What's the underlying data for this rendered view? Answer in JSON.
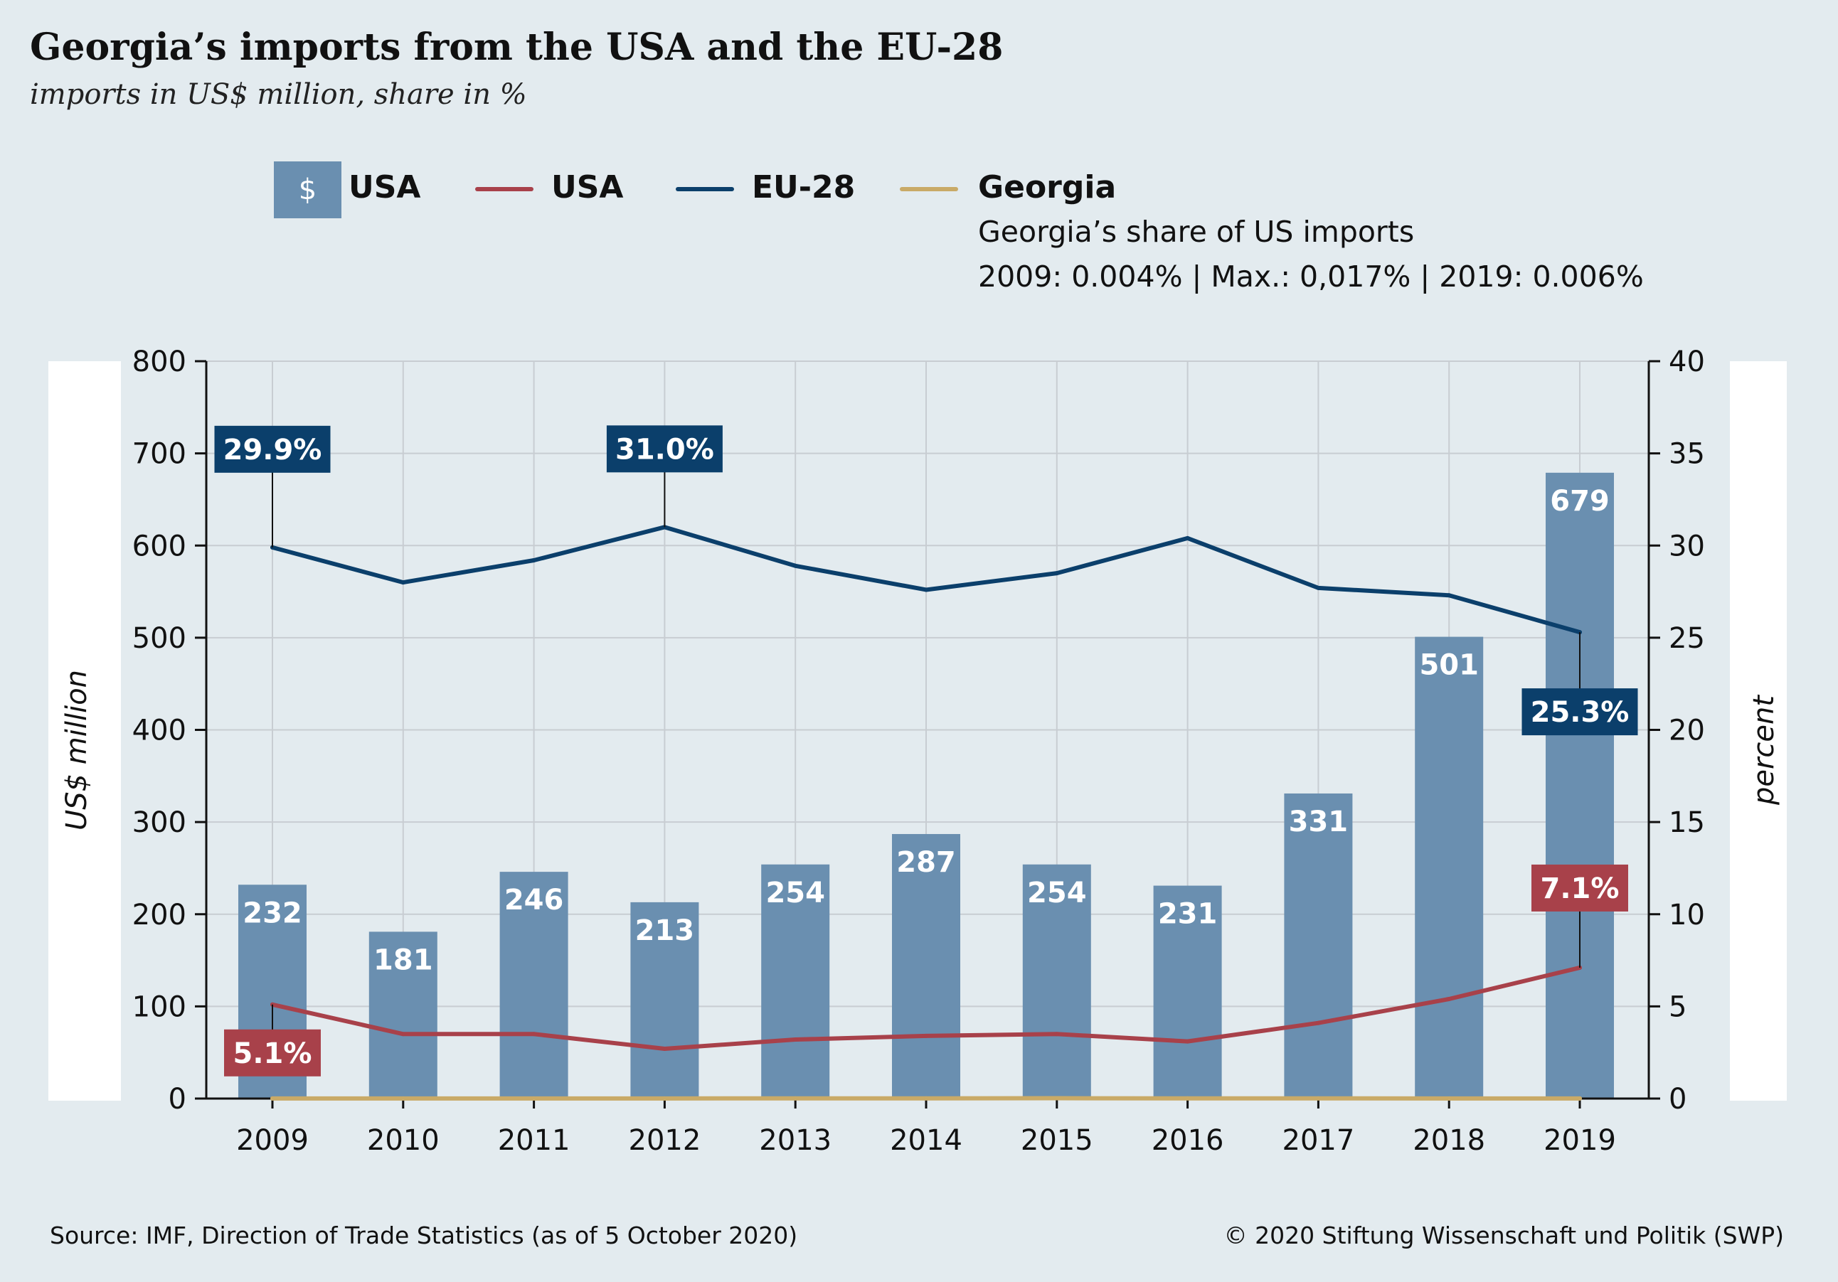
{
  "title": "Georgia’s imports from the USA and the EU-28",
  "subtitle": "imports in US$ million, share in %",
  "legend": {
    "bar_symbol": "$",
    "bar_label": "USA",
    "usa_line_label": "USA",
    "eu_line_label": "EU-28",
    "georgia_line_label": "Georgia",
    "georgia_note_1": "Georgia’s share of US imports",
    "georgia_note_2": "2009: 0.004% | Max.: 0,017% | 2019: 0.006%"
  },
  "footer": {
    "source": "Source: IMF, Direction of Trade Statistics (as of 5 October 2020)",
    "copyright": "© 2020 Stiftung Wissenschaft und Politik (SWP)"
  },
  "colors": {
    "background": "#e3ebef",
    "bar": "#6a8fb0",
    "usa_line": "#a8414a",
    "eu_line": "#0b3f6b",
    "georgia_line": "#c9aa67",
    "grid": "#c8cdd2"
  },
  "chart_data": {
    "type": "bar",
    "categories": [
      "2009",
      "2010",
      "2011",
      "2012",
      "2013",
      "2014",
      "2015",
      "2016",
      "2017",
      "2018",
      "2019"
    ],
    "ylabel": "US$ million",
    "y2label": "percent",
    "ylim": [
      0,
      800
    ],
    "y2lim": [
      0,
      40
    ],
    "yticks": [
      "0",
      "100",
      "200",
      "300",
      "400",
      "500",
      "600",
      "700",
      "800"
    ],
    "y2ticks": [
      "0",
      "5",
      "10",
      "15",
      "20",
      "25",
      "30",
      "35",
      "40"
    ],
    "grid": true,
    "series": [
      {
        "name": "USA",
        "kind": "bar",
        "axis": "left",
        "values": [
          232,
          181,
          246,
          213,
          254,
          287,
          254,
          231,
          331,
          501,
          679
        ],
        "labels": [
          "232",
          "181",
          "246",
          "213",
          "254",
          "287",
          "254",
          "231",
          "331",
          "501",
          "679"
        ]
      },
      {
        "name": "USA",
        "kind": "line",
        "axis": "right",
        "values": [
          5.1,
          3.5,
          3.5,
          2.7,
          3.2,
          3.4,
          3.5,
          3.1,
          4.1,
          5.4,
          7.1
        ]
      },
      {
        "name": "EU-28",
        "kind": "line",
        "axis": "right",
        "values": [
          29.9,
          28.0,
          29.2,
          31.0,
          28.9,
          27.6,
          28.5,
          30.4,
          27.7,
          27.3,
          25.3
        ]
      },
      {
        "name": "Georgia",
        "kind": "line",
        "axis": "right",
        "values": [
          0.004,
          0.005,
          0.006,
          0.007,
          0.009,
          0.012,
          0.017,
          0.01,
          0.008,
          0.007,
          0.006
        ]
      }
    ],
    "annotations": [
      {
        "series": "EU-28",
        "category": "2009",
        "text": "29.9%"
      },
      {
        "series": "EU-28",
        "category": "2012",
        "text": "31.0%"
      },
      {
        "series": "EU-28",
        "category": "2019",
        "text": "25.3%"
      },
      {
        "series": "USA",
        "category": "2009",
        "text": "5.1%"
      },
      {
        "series": "USA",
        "category": "2019",
        "text": "7.1%"
      }
    ]
  }
}
